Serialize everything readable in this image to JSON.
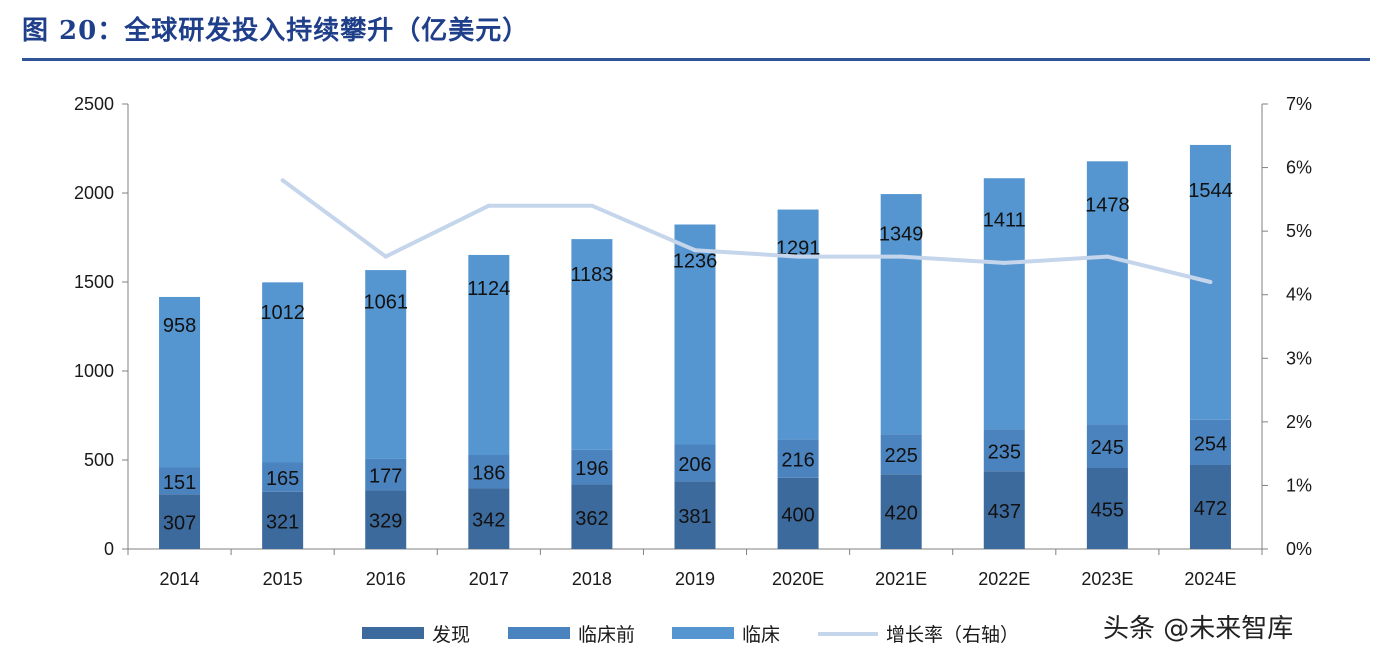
{
  "figure_title": "图 20：全球研发投入持续攀升（亿美元）",
  "watermark": "头条 @未来智库",
  "colors": {
    "discovery": "#3d6a9c",
    "preclinical": "#4b83bf",
    "clinical": "#5596d0",
    "growth": "#c5d5eb",
    "title": "#1f3f8a"
  },
  "chart_data": {
    "type": "bar",
    "stacked": true,
    "categories": [
      "2014",
      "2015",
      "2016",
      "2017",
      "2018",
      "2019",
      "2020E",
      "2021E",
      "2022E",
      "2023E",
      "2024E"
    ],
    "series": [
      {
        "name": "发现",
        "type": "bar",
        "values": [
          307,
          321,
          329,
          342,
          362,
          381,
          400,
          420,
          437,
          455,
          472
        ]
      },
      {
        "name": "临床前",
        "type": "bar",
        "values": [
          151,
          165,
          177,
          186,
          196,
          206,
          216,
          225,
          235,
          245,
          254
        ]
      },
      {
        "name": "临床",
        "type": "bar",
        "values": [
          958,
          1012,
          1061,
          1124,
          1183,
          1236,
          1291,
          1349,
          1411,
          1478,
          1544
        ]
      },
      {
        "name": "增长率（右轴）",
        "type": "line",
        "axis": "right",
        "values": [
          null,
          5.8,
          4.6,
          5.4,
          5.4,
          4.7,
          4.6,
          4.6,
          4.5,
          4.6,
          4.2
        ]
      }
    ],
    "y_left": {
      "lim": [
        0,
        2500
      ],
      "ticks": [
        "0",
        "500",
        "1000",
        "1500",
        "2000",
        "2500"
      ]
    },
    "y_right": {
      "lim": [
        0,
        7
      ],
      "ticks": [
        "0%",
        "1%",
        "2%",
        "3%",
        "4%",
        "5%",
        "6%",
        "7%"
      ]
    },
    "grid": false,
    "legend_position": "bottom"
  }
}
